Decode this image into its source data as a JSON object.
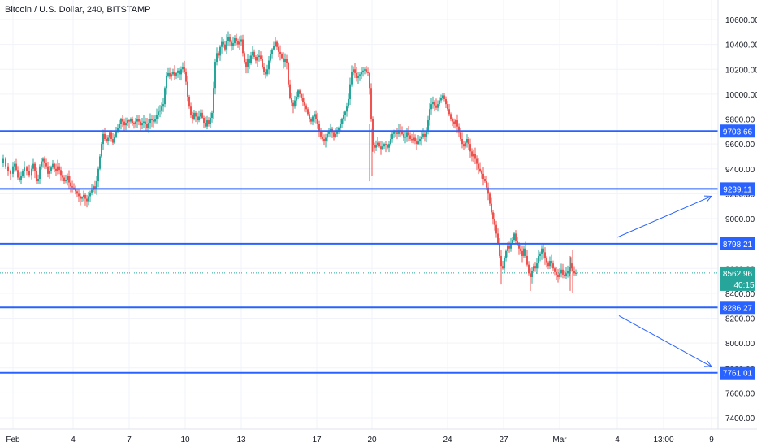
{
  "title": "Bitcoin / U.S. Dollar, 240, BITSTAMP",
  "colors": {
    "up": "#26a69a",
    "down": "#ef5350",
    "line": "#2962ff",
    "grid": "#f0f3fa",
    "axis_text": "#131722",
    "price_line": "#26a69a"
  },
  "chart_data": {
    "type": "candlestick",
    "title": "Bitcoin / U.S. Dollar, 240, BITSTAMP",
    "ylim": [
      7300,
      10750
    ],
    "y_ticks": [
      "10600.00",
      "10400.00",
      "10200.00",
      "10000.00",
      "9800.00",
      "9600.00",
      "9400.00",
      "9200.00",
      "9000.00",
      "8800.00",
      "8600.00",
      "8400.00",
      "8200.00",
      "8000.00",
      "7800.00",
      "7600.00",
      "7400.00"
    ],
    "x_ticks": [
      "Feb",
      "4",
      "7",
      "10",
      "13",
      "17",
      "20",
      "24",
      "27",
      "Mar",
      "4",
      "13:00",
      "9"
    ],
    "close_path": [
      [
        0,
        9450
      ],
      [
        4,
        9480
      ],
      [
        7,
        9420
      ],
      [
        10,
        9380
      ],
      [
        13,
        9360
      ],
      [
        16,
        9420
      ],
      [
        18,
        9440
      ],
      [
        20,
        9390
      ],
      [
        22,
        9330
      ],
      [
        24,
        9310
      ],
      [
        26,
        9340
      ],
      [
        28,
        9380
      ],
      [
        30,
        9410
      ],
      [
        33,
        9380
      ],
      [
        36,
        9350
      ],
      [
        39,
        9400
      ],
      [
        41,
        9440
      ],
      [
        43,
        9380
      ],
      [
        45,
        9300
      ],
      [
        47,
        9320
      ],
      [
        49,
        9420
      ],
      [
        51,
        9460
      ],
      [
        53,
        9480
      ],
      [
        55,
        9450
      ],
      [
        57,
        9420
      ],
      [
        59,
        9360
      ],
      [
        61,
        9380
      ],
      [
        63,
        9410
      ],
      [
        65,
        9440
      ],
      [
        67,
        9400
      ],
      [
        69,
        9380
      ],
      [
        71,
        9420
      ],
      [
        73,
        9390
      ],
      [
        75,
        9350
      ],
      [
        77,
        9330
      ],
      [
        79,
        9300
      ],
      [
        81,
        9310
      ],
      [
        83,
        9340
      ],
      [
        85,
        9290
      ],
      [
        87,
        9260
      ],
      [
        89,
        9250
      ],
      [
        91,
        9240
      ],
      [
        93,
        9220
      ],
      [
        95,
        9200
      ],
      [
        97,
        9180
      ],
      [
        99,
        9160
      ],
      [
        101,
        9170
      ],
      [
        103,
        9190
      ],
      [
        105,
        9160
      ],
      [
        107,
        9140
      ],
      [
        109,
        9180
      ],
      [
        111,
        9210
      ],
      [
        113,
        9230
      ],
      [
        115,
        9260
      ],
      [
        117,
        9240
      ],
      [
        119,
        9300
      ],
      [
        121,
        9400
      ],
      [
        123,
        9500
      ],
      [
        125,
        9600
      ],
      [
        127,
        9680
      ],
      [
        129,
        9640
      ],
      [
        131,
        9620
      ],
      [
        133,
        9650
      ],
      [
        135,
        9690
      ],
      [
        137,
        9640
      ],
      [
        139,
        9610
      ],
      [
        141,
        9660
      ],
      [
        143,
        9700
      ],
      [
        145,
        9730
      ],
      [
        147,
        9760
      ],
      [
        149,
        9800
      ],
      [
        151,
        9780
      ],
      [
        153,
        9750
      ],
      [
        155,
        9770
      ],
      [
        157,
        9790
      ],
      [
        159,
        9780
      ],
      [
        161,
        9800
      ],
      [
        163,
        9770
      ],
      [
        165,
        9760
      ],
      [
        167,
        9780
      ],
      [
        169,
        9800
      ],
      [
        171,
        9780
      ],
      [
        173,
        9750
      ],
      [
        175,
        9770
      ],
      [
        177,
        9780
      ],
      [
        179,
        9760
      ],
      [
        181,
        9730
      ],
      [
        183,
        9770
      ],
      [
        185,
        9800
      ],
      [
        187,
        9790
      ],
      [
        189,
        9780
      ],
      [
        191,
        9800
      ],
      [
        193,
        9830
      ],
      [
        195,
        9860
      ],
      [
        197,
        9870
      ],
      [
        199,
        9900
      ],
      [
        201,
        9920
      ],
      [
        203,
        10050
      ],
      [
        205,
        10150
      ],
      [
        207,
        10170
      ],
      [
        209,
        10140
      ],
      [
        211,
        10160
      ],
      [
        213,
        10180
      ],
      [
        215,
        10150
      ],
      [
        217,
        10170
      ],
      [
        219,
        10190
      ],
      [
        221,
        10160
      ],
      [
        223,
        10200
      ],
      [
        225,
        10220
      ],
      [
        227,
        10180
      ],
      [
        229,
        10100
      ],
      [
        231,
        9980
      ],
      [
        233,
        9900
      ],
      [
        235,
        9830
      ],
      [
        237,
        9800
      ],
      [
        239,
        9850
      ],
      [
        241,
        9820
      ],
      [
        243,
        9790
      ],
      [
        245,
        9820
      ],
      [
        247,
        9850
      ],
      [
        249,
        9810
      ],
      [
        251,
        9770
      ],
      [
        253,
        9740
      ],
      [
        255,
        9790
      ],
      [
        257,
        9760
      ],
      [
        259,
        9810
      ],
      [
        261,
        9850
      ],
      [
        263,
        10050
      ],
      [
        265,
        10260
      ],
      [
        267,
        10330
      ],
      [
        269,
        10310
      ],
      [
        271,
        10380
      ],
      [
        273,
        10420
      ],
      [
        275,
        10400
      ],
      [
        277,
        10360
      ],
      [
        279,
        10430
      ],
      [
        281,
        10460
      ],
      [
        283,
        10420
      ],
      [
        285,
        10390
      ],
      [
        287,
        10410
      ],
      [
        289,
        10450
      ],
      [
        291,
        10430
      ],
      [
        293,
        10400
      ],
      [
        295,
        10420
      ],
      [
        297,
        10440
      ],
      [
        299,
        10330
      ],
      [
        301,
        10260
      ],
      [
        303,
        10220
      ],
      [
        305,
        10280
      ],
      [
        307,
        10250
      ],
      [
        309,
        10310
      ],
      [
        311,
        10340
      ],
      [
        313,
        10300
      ],
      [
        315,
        10270
      ],
      [
        317,
        10300
      ],
      [
        319,
        10310
      ],
      [
        321,
        10280
      ],
      [
        323,
        10220
      ],
      [
        325,
        10180
      ],
      [
        327,
        10160
      ],
      [
        329,
        10200
      ],
      [
        331,
        10270
      ],
      [
        333,
        10320
      ],
      [
        335,
        10360
      ],
      [
        337,
        10390
      ],
      [
        339,
        10420
      ],
      [
        341,
        10380
      ],
      [
        343,
        10340
      ],
      [
        345,
        10320
      ],
      [
        347,
        10290
      ],
      [
        349,
        10260
      ],
      [
        351,
        10280
      ],
      [
        353,
        10250
      ],
      [
        355,
        10080
      ],
      [
        357,
        9970
      ],
      [
        359,
        9930
      ],
      [
        361,
        9900
      ],
      [
        363,
        9950
      ],
      [
        365,
        9980
      ],
      [
        367,
        10030
      ],
      [
        369,
        10000
      ],
      [
        371,
        9970
      ],
      [
        373,
        9940
      ],
      [
        375,
        9910
      ],
      [
        377,
        9880
      ],
      [
        379,
        9840
      ],
      [
        381,
        9800
      ],
      [
        383,
        9780
      ],
      [
        385,
        9820
      ],
      [
        387,
        9840
      ],
      [
        389,
        9800
      ],
      [
        391,
        9760
      ],
      [
        393,
        9700
      ],
      [
        395,
        9660
      ],
      [
        397,
        9640
      ],
      [
        399,
        9620
      ],
      [
        401,
        9650
      ],
      [
        403,
        9680
      ],
      [
        405,
        9700
      ],
      [
        407,
        9720
      ],
      [
        409,
        9690
      ],
      [
        411,
        9660
      ],
      [
        413,
        9680
      ],
      [
        415,
        9710
      ],
      [
        417,
        9730
      ],
      [
        419,
        9760
      ],
      [
        421,
        9800
      ],
      [
        423,
        9830
      ],
      [
        425,
        9860
      ],
      [
        427,
        9900
      ],
      [
        429,
        9960
      ],
      [
        431,
        10080
      ],
      [
        433,
        10180
      ],
      [
        435,
        10200
      ],
      [
        437,
        10170
      ],
      [
        439,
        10130
      ],
      [
        441,
        10150
      ],
      [
        443,
        10160
      ],
      [
        445,
        10180
      ],
      [
        447,
        10190
      ],
      [
        449,
        10200
      ],
      [
        451,
        10180
      ],
      [
        453,
        10170
      ],
      [
        455,
        10050
      ],
      [
        457,
        9800
      ],
      [
        459,
        9590
      ],
      [
        461,
        9570
      ],
      [
        463,
        9590
      ],
      [
        465,
        9610
      ],
      [
        467,
        9580
      ],
      [
        469,
        9560
      ],
      [
        471,
        9580
      ],
      [
        473,
        9600
      ],
      [
        475,
        9590
      ],
      [
        477,
        9570
      ],
      [
        479,
        9600
      ],
      [
        481,
        9640
      ],
      [
        483,
        9680
      ],
      [
        485,
        9700
      ],
      [
        487,
        9690
      ],
      [
        489,
        9680
      ],
      [
        491,
        9710
      ],
      [
        493,
        9700
      ],
      [
        495,
        9680
      ],
      [
        497,
        9650
      ],
      [
        499,
        9660
      ],
      [
        501,
        9690
      ],
      [
        503,
        9670
      ],
      [
        505,
        9640
      ],
      [
        507,
        9630
      ],
      [
        509,
        9650
      ],
      [
        511,
        9620
      ],
      [
        513,
        9600
      ],
      [
        515,
        9620
      ],
      [
        517,
        9640
      ],
      [
        519,
        9660
      ],
      [
        521,
        9680
      ],
      [
        523,
        9660
      ],
      [
        525,
        9700
      ],
      [
        527,
        9790
      ],
      [
        529,
        9880
      ],
      [
        531,
        9920
      ],
      [
        533,
        9940
      ],
      [
        535,
        9910
      ],
      [
        537,
        9890
      ],
      [
        539,
        9920
      ],
      [
        541,
        9950
      ],
      [
        543,
        9970
      ],
      [
        545,
        9990
      ],
      [
        547,
        9960
      ],
      [
        549,
        9920
      ],
      [
        551,
        9880
      ],
      [
        553,
        9840
      ],
      [
        555,
        9800
      ],
      [
        557,
        9780
      ],
      [
        559,
        9760
      ],
      [
        561,
        9790
      ],
      [
        563,
        9740
      ],
      [
        565,
        9690
      ],
      [
        567,
        9640
      ],
      [
        569,
        9600
      ],
      [
        571,
        9580
      ],
      [
        573,
        9610
      ],
      [
        575,
        9640
      ],
      [
        577,
        9600
      ],
      [
        579,
        9540
      ],
      [
        581,
        9500
      ],
      [
        583,
        9520
      ],
      [
        585,
        9480
      ],
      [
        587,
        9440
      ],
      [
        589,
        9400
      ],
      [
        591,
        9380
      ],
      [
        593,
        9360
      ],
      [
        595,
        9320
      ],
      [
        597,
        9300
      ],
      [
        599,
        9250
      ],
      [
        601,
        9200
      ],
      [
        603,
        9120
      ],
      [
        605,
        9050
      ],
      [
        607,
        9000
      ],
      [
        609,
        8950
      ],
      [
        611,
        8880
      ],
      [
        613,
        8800
      ],
      [
        615,
        8700
      ],
      [
        617,
        8620
      ],
      [
        619,
        8600
      ],
      [
        621,
        8680
      ],
      [
        623,
        8740
      ],
      [
        625,
        8780
      ],
      [
        627,
        8760
      ],
      [
        629,
        8800
      ],
      [
        631,
        8830
      ],
      [
        633,
        8880
      ],
      [
        635,
        8820
      ],
      [
        637,
        8790
      ],
      [
        639,
        8760
      ],
      [
        641,
        8740
      ],
      [
        643,
        8700
      ],
      [
        645,
        8760
      ],
      [
        647,
        8700
      ],
      [
        649,
        8630
      ],
      [
        651,
        8560
      ],
      [
        653,
        8530
      ],
      [
        655,
        8580
      ],
      [
        657,
        8620
      ],
      [
        659,
        8600
      ],
      [
        661,
        8640
      ],
      [
        663,
        8700
      ],
      [
        665,
        8720
      ],
      [
        667,
        8760
      ],
      [
        669,
        8730
      ],
      [
        671,
        8680
      ],
      [
        673,
        8650
      ],
      [
        675,
        8620
      ],
      [
        677,
        8660
      ],
      [
        679,
        8640
      ],
      [
        681,
        8600
      ],
      [
        683,
        8570
      ],
      [
        685,
        8550
      ],
      [
        687,
        8530
      ],
      [
        689,
        8560
      ],
      [
        691,
        8590
      ],
      [
        693,
        8550
      ],
      [
        695,
        8540
      ],
      [
        697,
        8560
      ],
      [
        699,
        8580
      ],
      [
        701,
        8600
      ],
      [
        703,
        8640
      ],
      [
        705,
        8580
      ],
      [
        707,
        8560
      ],
      [
        709,
        8563
      ]
    ],
    "horizontal_levels": [
      {
        "value": 9703.66,
        "label": "9703.66"
      },
      {
        "value": 9239.11,
        "label": "9239.11"
      },
      {
        "value": 8798.21,
        "label": "8798.21"
      },
      {
        "value": 8286.27,
        "label": "8286.27"
      },
      {
        "value": 7761.01,
        "label": "7761.01"
      }
    ],
    "current_price": {
      "value": 8562.96,
      "label": "8562.96",
      "countdown": "40:15"
    },
    "arrows": [
      {
        "x0": 760,
        "y0": 8850,
        "x1": 876,
        "y1": 9180
      },
      {
        "x0": 762,
        "y0": 8220,
        "x1": 876,
        "y1": 7810
      }
    ]
  }
}
